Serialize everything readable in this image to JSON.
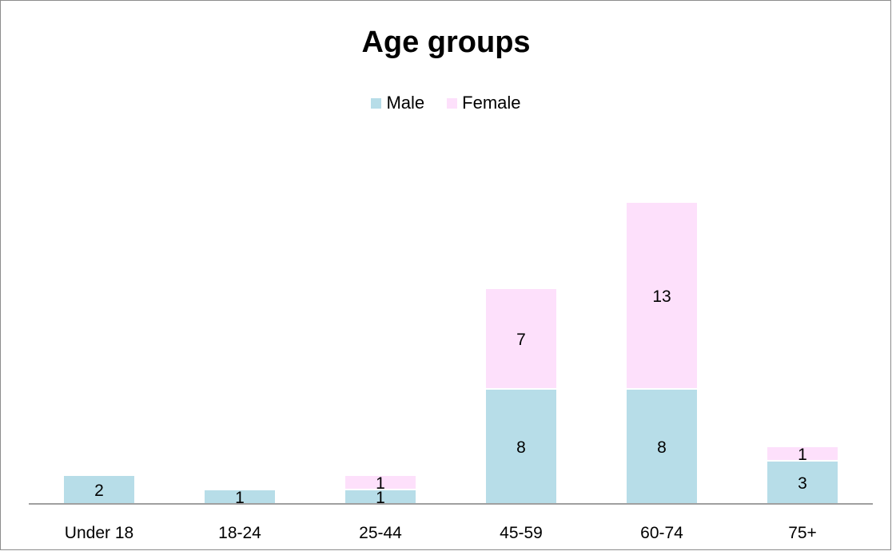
{
  "chart_data": {
    "type": "bar",
    "stacked": true,
    "title": "Age groups",
    "xlabel": "",
    "ylabel": "",
    "categories": [
      "Under 18",
      "18-24",
      "25-44",
      "45-59",
      "60-74",
      "75+"
    ],
    "series": [
      {
        "name": "Male",
        "values": [
          2,
          1,
          1,
          8,
          8,
          3
        ],
        "color": "#b7dde8"
      },
      {
        "name": "Female",
        "values": [
          0,
          0,
          1,
          7,
          13,
          1
        ],
        "color": "#fde0fb"
      }
    ],
    "ylim": [
      0,
      21
    ],
    "legend": "top-center",
    "grid": false,
    "axis_color": "#808080"
  }
}
